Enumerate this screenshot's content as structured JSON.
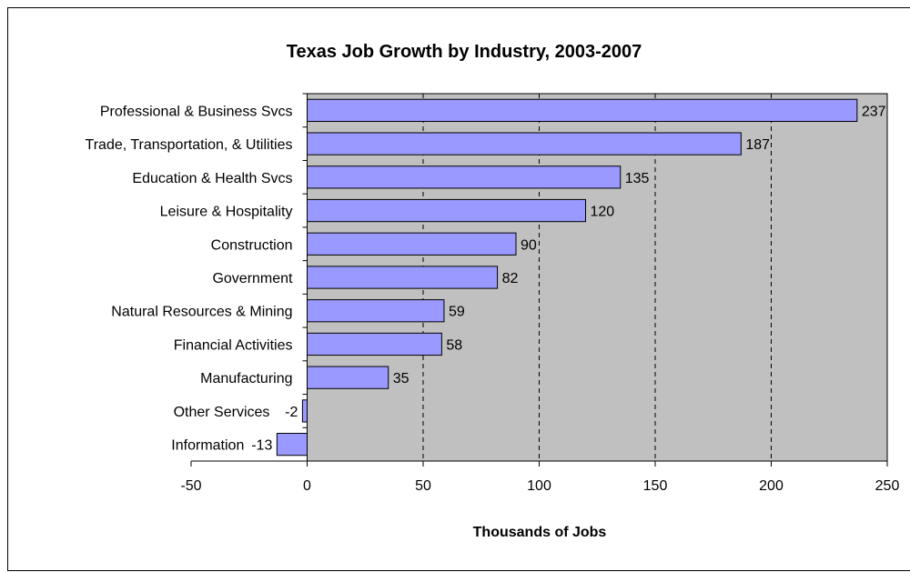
{
  "chart_data": {
    "type": "bar",
    "orientation": "horizontal",
    "title": "Texas Job Growth by Industry, 2003-2007",
    "xlabel": "Thousands of Jobs",
    "ylabel": "",
    "xlim": [
      -50,
      250
    ],
    "xticks": [
      -50,
      0,
      50,
      100,
      150,
      200,
      250
    ],
    "grid": "vertical dashed",
    "categories": [
      "Professional & Business Svcs",
      "Trade, Transportation, & Utilities",
      "Education & Health Svcs",
      "Leisure & Hospitality",
      "Construction",
      "Government",
      "Natural Resources & Mining",
      "Financial Activities",
      "Manufacturing",
      "Other Services",
      "Information"
    ],
    "values": [
      237,
      187,
      135,
      120,
      90,
      82,
      59,
      58,
      35,
      -2,
      -13
    ],
    "colors": {
      "bar_fill": "#9999ff",
      "plot_background": "#c0c0c0",
      "outline": "#000000"
    }
  }
}
